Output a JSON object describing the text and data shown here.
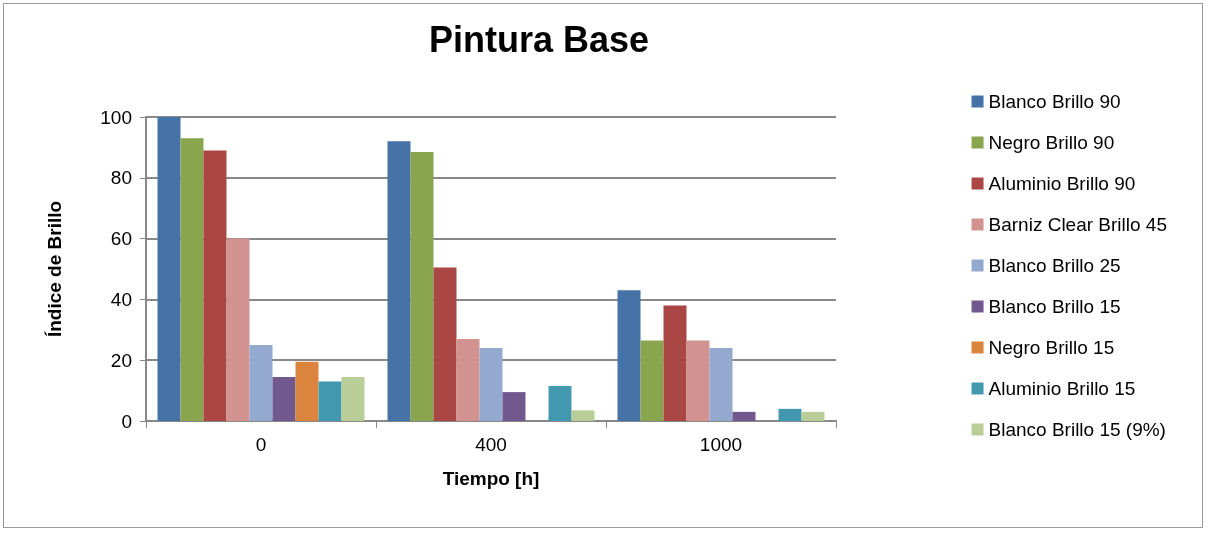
{
  "chart_data": {
    "type": "bar",
    "title": "Pintura Base",
    "xlabel": "Tiempo [h]",
    "ylabel": "Índice de Brillo",
    "categories": [
      "0",
      "400",
      "1000"
    ],
    "ylim": [
      0,
      100
    ],
    "yticks": [
      0,
      20,
      40,
      60,
      80,
      100
    ],
    "grid": "y",
    "legend": "right",
    "series": [
      {
        "name": "Blanco Brillo 90",
        "color": "#4572a7",
        "values": [
          100,
          92,
          43
        ]
      },
      {
        "name": "Negro Brillo 90",
        "color": "#89a54e",
        "values": [
          93,
          88.5,
          26.5
        ]
      },
      {
        "name": "Aluminio Brillo 90",
        "color": "#aa4643",
        "values": [
          89,
          50.5,
          38
        ]
      },
      {
        "name": "Barniz Clear Brillo 45",
        "color": "#d29290",
        "values": [
          60,
          27,
          26.5
        ]
      },
      {
        "name": "Blanco Brillo 25",
        "color": "#94a9d0",
        "values": [
          25,
          24,
          24
        ]
      },
      {
        "name": "Blanco Brillo 15",
        "color": "#71588f",
        "values": [
          14.5,
          9.5,
          3
        ]
      },
      {
        "name": "Negro Brillo 15",
        "color": "#db843d",
        "values": [
          19.5,
          null,
          null
        ]
      },
      {
        "name": "Aluminio Brillo 15",
        "color": "#4198af",
        "values": [
          13,
          11.5,
          4
        ]
      },
      {
        "name": "Blanco Brillo 15 (9%)",
        "color": "#b9ce96",
        "values": [
          14.5,
          3.5,
          3
        ]
      }
    ]
  }
}
